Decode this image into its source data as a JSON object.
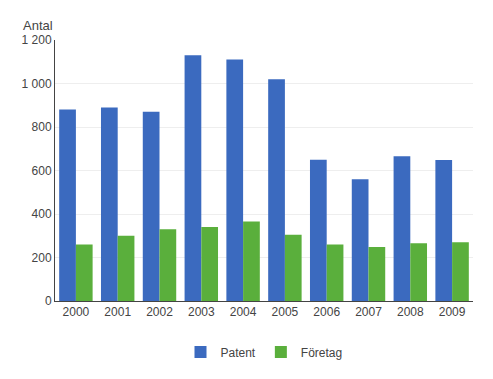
{
  "chart_data": {
    "type": "bar",
    "ylabel": "Antal",
    "categories": [
      "2000",
      "2001",
      "2002",
      "2003",
      "2004",
      "2005",
      "2006",
      "2007",
      "2008",
      "2009"
    ],
    "series": [
      {
        "name": "Patent",
        "color": "#3b6abf",
        "values": [
          880,
          890,
          870,
          1130,
          1110,
          1020,
          650,
          560,
          665,
          648
        ]
      },
      {
        "name": "Företag",
        "color": "#5aaf3c",
        "values": [
          260,
          300,
          330,
          340,
          365,
          305,
          260,
          248,
          265,
          270
        ]
      }
    ],
    "ylim": [
      0,
      1200
    ],
    "yticks": [
      0,
      200,
      400,
      600,
      800,
      {
        "value": 1000,
        "label": "1 000"
      },
      {
        "value": 1200,
        "label": "1 200"
      }
    ],
    "grid": true,
    "legend": "bottom"
  }
}
